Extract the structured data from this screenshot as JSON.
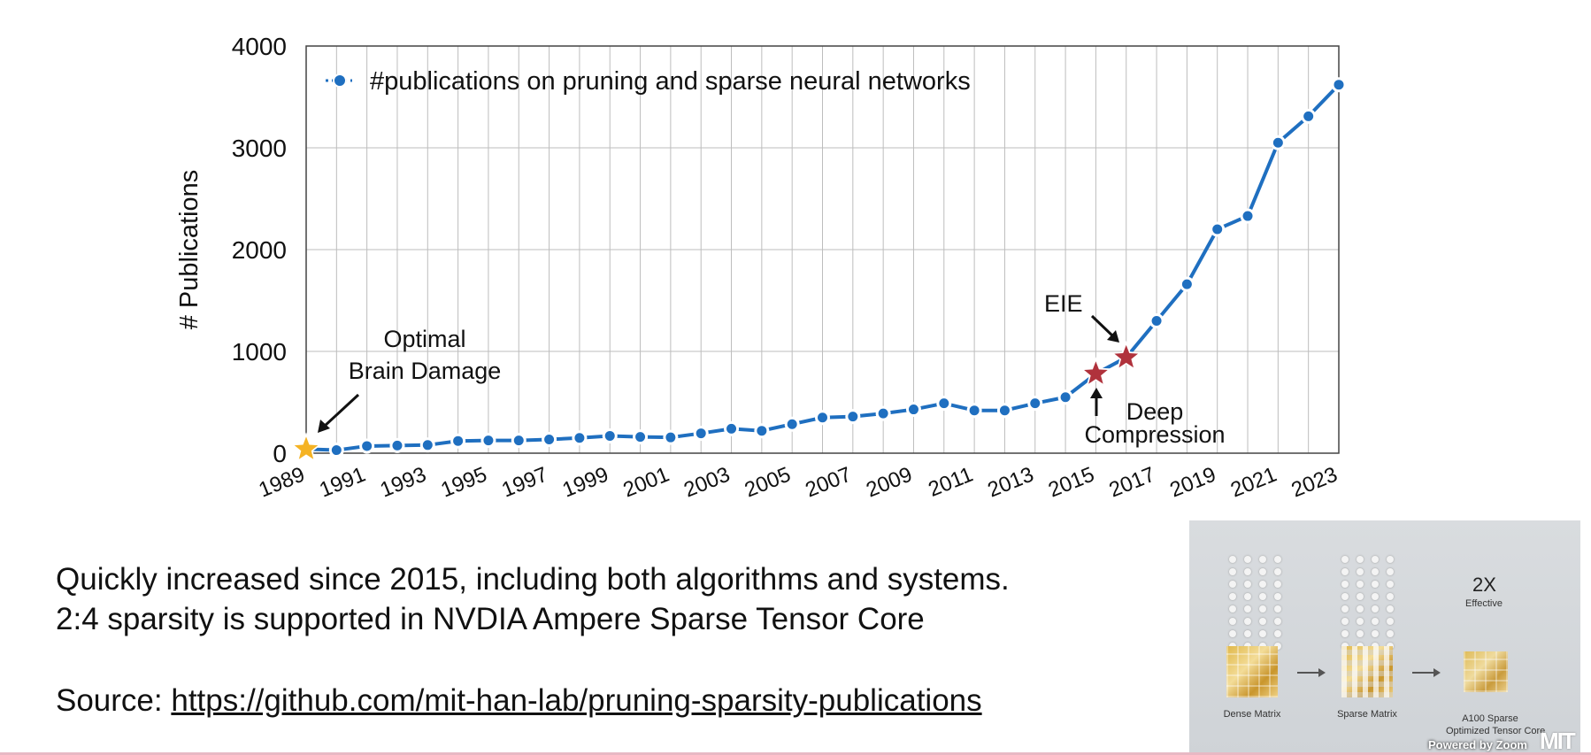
{
  "chart_data": {
    "type": "line",
    "xlabel": "",
    "ylabel": "# Publications",
    "ylim": [
      0,
      4000
    ],
    "xlim": [
      1989,
      2023
    ],
    "yticks": [
      0,
      1000,
      2000,
      3000,
      4000
    ],
    "xticks": [
      "1989",
      "1991",
      "1993",
      "1995",
      "1997",
      "1999",
      "2001",
      "2003",
      "2005",
      "2007",
      "2009",
      "2011",
      "2013",
      "2015",
      "2017",
      "2019",
      "2021",
      "2023"
    ],
    "grid": true,
    "legend_position": "top-left",
    "series": [
      {
        "name": "#publications on pruning and sparse neural networks",
        "color": "#1f6fc0",
        "x": [
          1989,
          1990,
          1991,
          1992,
          1993,
          1994,
          1995,
          1996,
          1997,
          1998,
          1999,
          2000,
          2001,
          2002,
          2003,
          2004,
          2005,
          2006,
          2007,
          2008,
          2009,
          2010,
          2011,
          2012,
          2013,
          2014,
          2015,
          2016,
          2017,
          2018,
          2019,
          2020,
          2021,
          2022,
          2023
        ],
        "y": [
          40,
          30,
          70,
          75,
          80,
          120,
          125,
          125,
          135,
          150,
          170,
          160,
          155,
          195,
          240,
          220,
          285,
          350,
          360,
          390,
          430,
          490,
          420,
          420,
          490,
          550,
          780,
          940,
          1300,
          1660,
          2200,
          2330,
          3050,
          3310,
          3620
        ]
      }
    ],
    "annotations": [
      {
        "text_lines": [
          "Optimal",
          "Brain Damage"
        ],
        "x": 1989,
        "y": 40,
        "marker": "star",
        "marker_color": "#f5b324"
      },
      {
        "text_lines": [
          "EIE"
        ],
        "x": 2016,
        "y": 940,
        "marker": "star",
        "marker_color": "#b0323c"
      },
      {
        "text_lines": [
          "Deep",
          "Compression"
        ],
        "x": 2015,
        "y": 780,
        "marker": "star",
        "marker_color": "#b0323c"
      }
    ]
  },
  "caption": {
    "line1": "Quickly increased since 2015, including both algorithms and systems.",
    "line2": "2:4 sparsity is supported in NVDIA Ampere Sparse Tensor Core"
  },
  "source": {
    "label": "Source: ",
    "link": "https://github.com/mit-han-lab/pruning-sparsity-publications"
  },
  "thumbnail": {
    "badge": "2X",
    "badge_sub": "Effective",
    "dense_label": "Dense Matrix",
    "sparse_label": "Sparse Matrix",
    "a100_label_line1": "A100 Sparse",
    "a100_label_line2": "Optimized Tensor Core",
    "overlay": "Powered by Zoom"
  },
  "logo": "MIT"
}
